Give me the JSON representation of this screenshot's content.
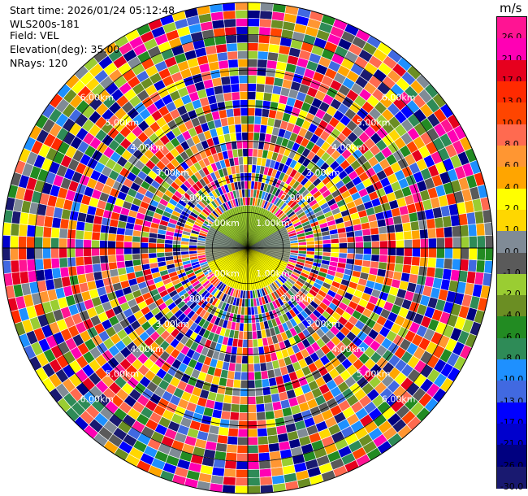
{
  "header": {
    "start_time": "Start time: 2026/01/24 05:12:48",
    "site": "WLS200s-181",
    "field": "Field: VEL",
    "elevation": "Elevation(deg): 35.00",
    "nrays": "NRays: 120"
  },
  "colorbar": {
    "unit": "m/s",
    "bins": [
      {
        "label": "26.0",
        "color": "#ff1493"
      },
      {
        "label": "21.0",
        "color": "#ff00b4"
      },
      {
        "label": "17.0",
        "color": "#e6001e"
      },
      {
        "label": "13.0",
        "color": "#ff2a00"
      },
      {
        "label": "10.0",
        "color": "#ff4500"
      },
      {
        "label": "8.0",
        "color": "#ff6a50"
      },
      {
        "label": "6.0",
        "color": "#ff9632"
      },
      {
        "label": "4.0",
        "color": "#ffa500"
      },
      {
        "label": "2.0",
        "color": "#ffff00"
      },
      {
        "label": "1.0",
        "color": "#ffd700"
      },
      {
        "label": "0.0",
        "color": "#808b96"
      },
      {
        "label": "-1.0",
        "color": "#5a5a5a"
      },
      {
        "label": "-2.0",
        "color": "#9acd32"
      },
      {
        "label": "-4.0",
        "color": "#6b8e23"
      },
      {
        "label": "-6.0",
        "color": "#228b22"
      },
      {
        "label": "-8.0",
        "color": "#2e8b57"
      },
      {
        "label": "-10.0",
        "color": "#1e90ff"
      },
      {
        "label": "-13.0",
        "color": "#4169e1"
      },
      {
        "label": "-17.0",
        "color": "#0000ff"
      },
      {
        "label": "-21.0",
        "color": "#0000cd"
      },
      {
        "label": "-26.0",
        "color": "#000080"
      },
      {
        "label": "-30.0",
        "color": "#191970"
      }
    ]
  },
  "chart_data": {
    "type": "heatmap",
    "projection": "polar (PPI)",
    "field": "VEL",
    "unit": "m/s",
    "elevation_deg": 35.0,
    "nrays": 120,
    "range_rings_km": [
      1.0,
      2.0,
      3.0,
      4.0,
      5.0,
      6.0
    ],
    "range_ring_labels": [
      "1.00km",
      "2.00km",
      "3.00km",
      "4.00km",
      "5.00km",
      "6.00km"
    ],
    "max_range_km": 6.9,
    "center_pattern": {
      "inner_radius_km": 1.2,
      "south_sector_color": "#ffff00",
      "north_sector_color": "#9acd32",
      "side_sector_color": "#808b96"
    }
  }
}
